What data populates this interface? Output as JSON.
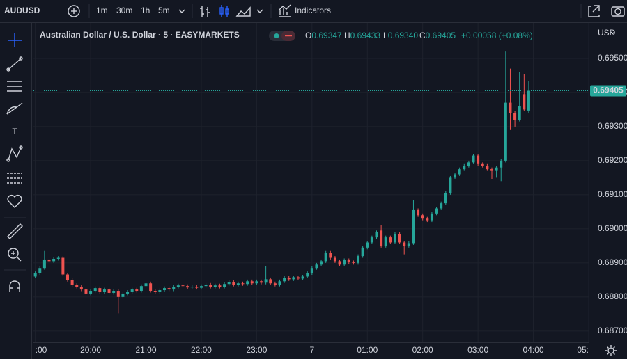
{
  "toolbar": {
    "symbol": "AUDUSD",
    "intervals": [
      "1m",
      "30m",
      "1h",
      "5m"
    ],
    "active_interval": "5m",
    "indicators": "Indicators"
  },
  "legend": {
    "title": "Australian Dollar / U.S. Dollar · 5 · EASYMARKETS",
    "o_label": "O",
    "o": "0.69347",
    "h_label": "H",
    "h": "0.69433",
    "l_label": "L",
    "l": "0.69340",
    "c_label": "C",
    "c": "0.69405",
    "change": "+0.00058 (+0.08%)"
  },
  "currency": "USD",
  "last_price_label": "0.69405",
  "chart_data": {
    "type": "candlestick",
    "up_color": "#26a69a",
    "down_color": "#ef5350",
    "xlim": [
      1138,
      1740
    ],
    "xticks": [
      {
        "value": 1140,
        "label": ":00"
      },
      {
        "value": 1200,
        "label": "20:00"
      },
      {
        "value": 1260,
        "label": "21:00"
      },
      {
        "value": 1320,
        "label": "22:00"
      },
      {
        "value": 1380,
        "label": "23:00"
      },
      {
        "value": 1440,
        "label": "7"
      },
      {
        "value": 1500,
        "label": "01:00"
      },
      {
        "value": 1560,
        "label": "02:00"
      },
      {
        "value": 1620,
        "label": "03:00"
      },
      {
        "value": 1680,
        "label": "04:00"
      },
      {
        "value": 1740,
        "label": "05:"
      }
    ],
    "ylim": [
      0.68667,
      0.69604
    ],
    "yticks": [
      {
        "value": 0.687,
        "label": "0.68700"
      },
      {
        "value": 0.688,
        "label": "0.68800"
      },
      {
        "value": 0.689,
        "label": "0.68900"
      },
      {
        "value": 0.69,
        "label": "0.69000"
      },
      {
        "value": 0.691,
        "label": "0.69100"
      },
      {
        "value": 0.692,
        "label": "0.69200"
      },
      {
        "value": 0.693,
        "label": "0.69300"
      },
      {
        "value": 0.694,
        "label": "0.69400"
      },
      {
        "value": 0.695,
        "label": "0.69500"
      }
    ],
    "grid": true,
    "x": [
      1140,
      1145,
      1150,
      1155,
      1160,
      1165,
      1170,
      1175,
      1180,
      1185,
      1190,
      1195,
      1200,
      1205,
      1210,
      1215,
      1220,
      1225,
      1230,
      1235,
      1240,
      1245,
      1250,
      1255,
      1260,
      1265,
      1270,
      1275,
      1280,
      1285,
      1290,
      1295,
      1300,
      1305,
      1310,
      1315,
      1320,
      1325,
      1330,
      1335,
      1340,
      1345,
      1350,
      1355,
      1360,
      1365,
      1370,
      1375,
      1380,
      1385,
      1390,
      1395,
      1400,
      1405,
      1410,
      1415,
      1420,
      1425,
      1430,
      1435,
      1440,
      1445,
      1450,
      1455,
      1460,
      1465,
      1470,
      1475,
      1480,
      1485,
      1490,
      1495,
      1500,
      1505,
      1510,
      1515,
      1520,
      1525,
      1530,
      1535,
      1540,
      1545,
      1550,
      1555,
      1560,
      1565,
      1570,
      1575,
      1580,
      1585,
      1590,
      1595,
      1600,
      1605,
      1610,
      1615,
      1620,
      1625,
      1630,
      1635,
      1640,
      1645,
      1650,
      1655,
      1660,
      1665,
      1670,
      1675
    ],
    "open": [
      0.6886,
      0.6887,
      0.68885,
      0.6891,
      0.68905,
      0.68912,
      0.68915,
      0.68866,
      0.6885,
      0.68835,
      0.6883,
      0.68822,
      0.6881,
      0.68818,
      0.68826,
      0.68815,
      0.68822,
      0.68812,
      0.68818,
      0.688,
      0.6881,
      0.68815,
      0.68822,
      0.68818,
      0.68832,
      0.6884,
      0.68818,
      0.68815,
      0.6882,
      0.68826,
      0.68822,
      0.6883,
      0.68834,
      0.68832,
      0.68828,
      0.6883,
      0.68827,
      0.68832,
      0.68836,
      0.6883,
      0.68834,
      0.6883,
      0.68838,
      0.68844,
      0.68836,
      0.6884,
      0.68838,
      0.68846,
      0.6884,
      0.68846,
      0.68842,
      0.68852,
      0.6884,
      0.68836,
      0.68846,
      0.68856,
      0.68852,
      0.68858,
      0.68854,
      0.6886,
      0.6887,
      0.68885,
      0.68895,
      0.68905,
      0.6893,
      0.68915,
      0.68905,
      0.68895,
      0.68908,
      0.68902,
      0.689,
      0.6892,
      0.68945,
      0.6896,
      0.68975,
      0.68995,
      0.6895,
      0.68975,
      0.6896,
      0.68985,
      0.6896,
      0.6895,
      0.68958,
      0.69055,
      0.6904,
      0.6903,
      0.69025,
      0.69045,
      0.6906,
      0.69075,
      0.69105,
      0.6915,
      0.6916,
      0.69175,
      0.69185,
      0.69195,
      0.69215,
      0.6919,
      0.69185,
      0.69175,
      0.6917,
      0.6918,
      0.692,
      0.6937,
      0.6934,
      0.6932,
      0.69395,
      0.69347
    ],
    "high": [
      0.68875,
      0.6889,
      0.68935,
      0.68915,
      0.68917,
      0.6892,
      0.6892,
      0.68871,
      0.68855,
      0.6884,
      0.68835,
      0.68827,
      0.68823,
      0.68831,
      0.68831,
      0.68827,
      0.68827,
      0.68823,
      0.68823,
      0.68815,
      0.6882,
      0.68827,
      0.68827,
      0.68837,
      0.68845,
      0.68845,
      0.68823,
      0.68825,
      0.68831,
      0.68831,
      0.68835,
      0.68839,
      0.68839,
      0.68837,
      0.68835,
      0.68835,
      0.68837,
      0.68841,
      0.68841,
      0.68839,
      0.68839,
      0.68843,
      0.68849,
      0.68849,
      0.68845,
      0.68845,
      0.68851,
      0.68851,
      0.68851,
      0.68851,
      0.6889,
      0.68857,
      0.68845,
      0.68851,
      0.68861,
      0.68861,
      0.68863,
      0.68863,
      0.68865,
      0.68875,
      0.6889,
      0.689,
      0.6891,
      0.68935,
      0.68935,
      0.6892,
      0.6891,
      0.68913,
      0.68913,
      0.68907,
      0.68925,
      0.6895,
      0.68965,
      0.6898,
      0.68995,
      0.6901,
      0.6898,
      0.6898,
      0.6899,
      0.6899,
      0.68965,
      0.68963,
      0.69085,
      0.6906,
      0.69045,
      0.69035,
      0.6905,
      0.69065,
      0.6908,
      0.6911,
      0.69155,
      0.69165,
      0.6918,
      0.6919,
      0.692,
      0.6922,
      0.6922,
      0.69195,
      0.6919,
      0.6918,
      0.69185,
      0.69205,
      0.6952,
      0.6947,
      0.69345,
      0.6946,
      0.69455,
      0.69433
    ],
    "low": [
      0.68855,
      0.68865,
      0.6888,
      0.689,
      0.689,
      0.68907,
      0.68861,
      0.68845,
      0.6883,
      0.68825,
      0.68817,
      0.68805,
      0.68805,
      0.68813,
      0.6881,
      0.6881,
      0.68807,
      0.68807,
      0.68752,
      0.68795,
      0.68805,
      0.6881,
      0.68813,
      0.68813,
      0.68827,
      0.68813,
      0.6881,
      0.6881,
      0.68815,
      0.68817,
      0.68817,
      0.68825,
      0.68827,
      0.68823,
      0.68823,
      0.68822,
      0.68822,
      0.68827,
      0.68825,
      0.68825,
      0.68825,
      0.68825,
      0.68833,
      0.68831,
      0.68831,
      0.68833,
      0.68833,
      0.68835,
      0.68835,
      0.68837,
      0.68837,
      0.68835,
      0.68831,
      0.68831,
      0.68841,
      0.68847,
      0.68847,
      0.68849,
      0.68849,
      0.68855,
      0.68865,
      0.6888,
      0.6889,
      0.689,
      0.6891,
      0.689,
      0.6889,
      0.6889,
      0.68897,
      0.68895,
      0.68895,
      0.68915,
      0.6894,
      0.68955,
      0.6897,
      0.68945,
      0.68945,
      0.68955,
      0.68955,
      0.68955,
      0.68925,
      0.68945,
      0.68953,
      0.69035,
      0.69025,
      0.6902,
      0.6902,
      0.6904,
      0.69055,
      0.6907,
      0.691,
      0.69145,
      0.69155,
      0.6917,
      0.6918,
      0.6919,
      0.69185,
      0.6918,
      0.6917,
      0.69145,
      0.6915,
      0.6914,
      0.69195,
      0.6929,
      0.693,
      0.69315,
      0.69345,
      0.6934
    ],
    "close": [
      0.6887,
      0.68885,
      0.6891,
      0.68905,
      0.68912,
      0.68915,
      0.68866,
      0.6885,
      0.68835,
      0.6883,
      0.68822,
      0.6881,
      0.68818,
      0.68826,
      0.68815,
      0.68822,
      0.68812,
      0.68818,
      0.688,
      0.6881,
      0.68815,
      0.68822,
      0.68818,
      0.68832,
      0.6884,
      0.68818,
      0.68815,
      0.6882,
      0.68826,
      0.68822,
      0.6883,
      0.68834,
      0.68832,
      0.68828,
      0.6883,
      0.68827,
      0.68832,
      0.68836,
      0.6883,
      0.68834,
      0.6883,
      0.68838,
      0.68844,
      0.68836,
      0.6884,
      0.68838,
      0.68846,
      0.6884,
      0.68846,
      0.68842,
      0.68852,
      0.6884,
      0.68836,
      0.68846,
      0.68856,
      0.68852,
      0.68858,
      0.68854,
      0.6886,
      0.6887,
      0.68885,
      0.68895,
      0.68905,
      0.6893,
      0.68915,
      0.68905,
      0.68895,
      0.68908,
      0.68902,
      0.689,
      0.6892,
      0.68945,
      0.6896,
      0.68975,
      0.6899,
      0.6895,
      0.68975,
      0.6896,
      0.68985,
      0.6896,
      0.6895,
      0.68958,
      0.69055,
      0.6904,
      0.6903,
      0.69025,
      0.69045,
      0.6906,
      0.69075,
      0.69105,
      0.6915,
      0.6916,
      0.69175,
      0.69185,
      0.69195,
      0.69215,
      0.6919,
      0.69185,
      0.69175,
      0.6917,
      0.6918,
      0.692,
      0.6937,
      0.6934,
      0.6932,
      0.6936,
      0.6935,
      0.69405
    ]
  }
}
